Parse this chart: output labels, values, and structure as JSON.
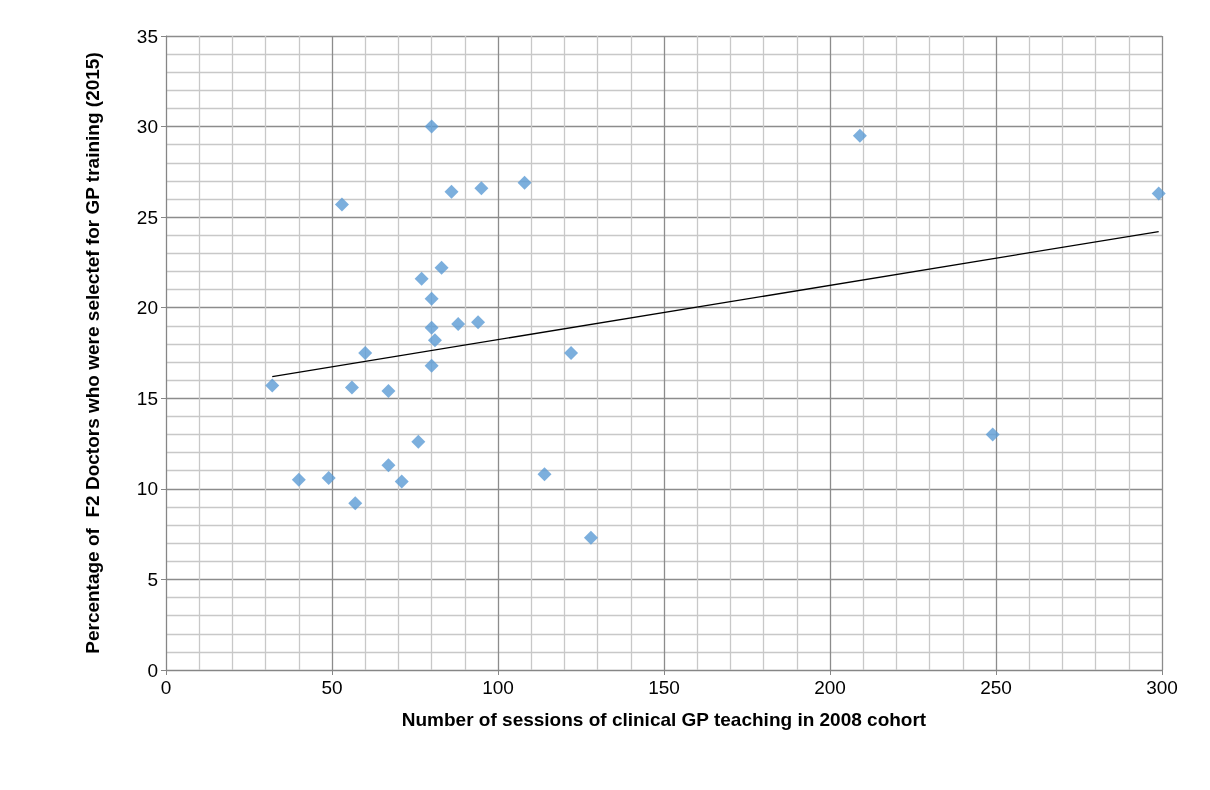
{
  "chart_data": {
    "type": "scatter",
    "xlabel": "Number of sessions of clinical GP teaching in 2008 cohort",
    "ylabel": "Percentage of  F2 Doctors who were selectef for GP training (2015)",
    "xlim": [
      0,
      300
    ],
    "xticks": [
      0,
      50,
      100,
      150,
      200,
      250,
      300
    ],
    "ylim": [
      0,
      35
    ],
    "yticks": [
      0,
      5,
      10,
      15,
      20,
      25,
      30,
      35
    ],
    "grid": true,
    "marker": "diamond",
    "series": [
      {
        "color": "#5b9bd5",
        "x": [
          32,
          40,
          49,
          53,
          56,
          57,
          60,
          67,
          67,
          71,
          76,
          77,
          80,
          80,
          80,
          81,
          80,
          83,
          86,
          88,
          94,
          95,
          108,
          114,
          122,
          128,
          209,
          249,
          299
        ],
        "values": [
          15.7,
          10.5,
          10.6,
          25.7,
          15.6,
          9.2,
          17.5,
          11.3,
          15.4,
          10.4,
          12.6,
          21.6,
          30.0,
          20.5,
          18.9,
          18.2,
          16.8,
          22.2,
          26.4,
          19.1,
          19.2,
          26.6,
          26.9,
          10.8,
          17.5,
          7.3,
          29.5,
          13.0,
          26.3
        ]
      },
      {
        "type": "line",
        "color": "#000000",
        "marker": "none",
        "x": [
          32,
          299
        ],
        "values": [
          16.2,
          24.2
        ]
      }
    ]
  }
}
